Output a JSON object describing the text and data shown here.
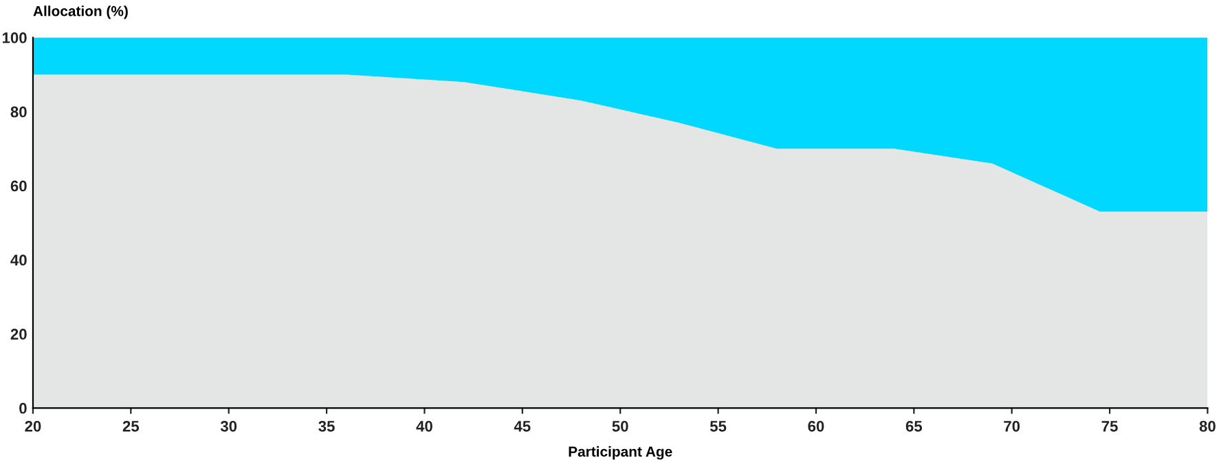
{
  "chart_data": {
    "type": "area",
    "stacked": true,
    "xlabel": "Participant Age",
    "ylabel": "Allocation (%)",
    "x": [
      20,
      36,
      42,
      48,
      53,
      58,
      64,
      69,
      74.5,
      80
    ],
    "series": [
      {
        "color": "#e4e6e6",
        "values": [
          90,
          90,
          88,
          83,
          77,
          70,
          70,
          66,
          53,
          53
        ]
      },
      {
        "color": "#00d8ff",
        "values": [
          10,
          10,
          12,
          17,
          23,
          30,
          30,
          34,
          47,
          47
        ]
      }
    ],
    "xlim": [
      20,
      80
    ],
    "ylim": [
      0,
      100
    ],
    "xticks": [
      20,
      25,
      30,
      35,
      40,
      45,
      50,
      55,
      60,
      65,
      70,
      75,
      80
    ],
    "yticks": [
      0,
      20,
      40,
      60,
      80,
      100
    ],
    "grid": false,
    "legend": false
  }
}
